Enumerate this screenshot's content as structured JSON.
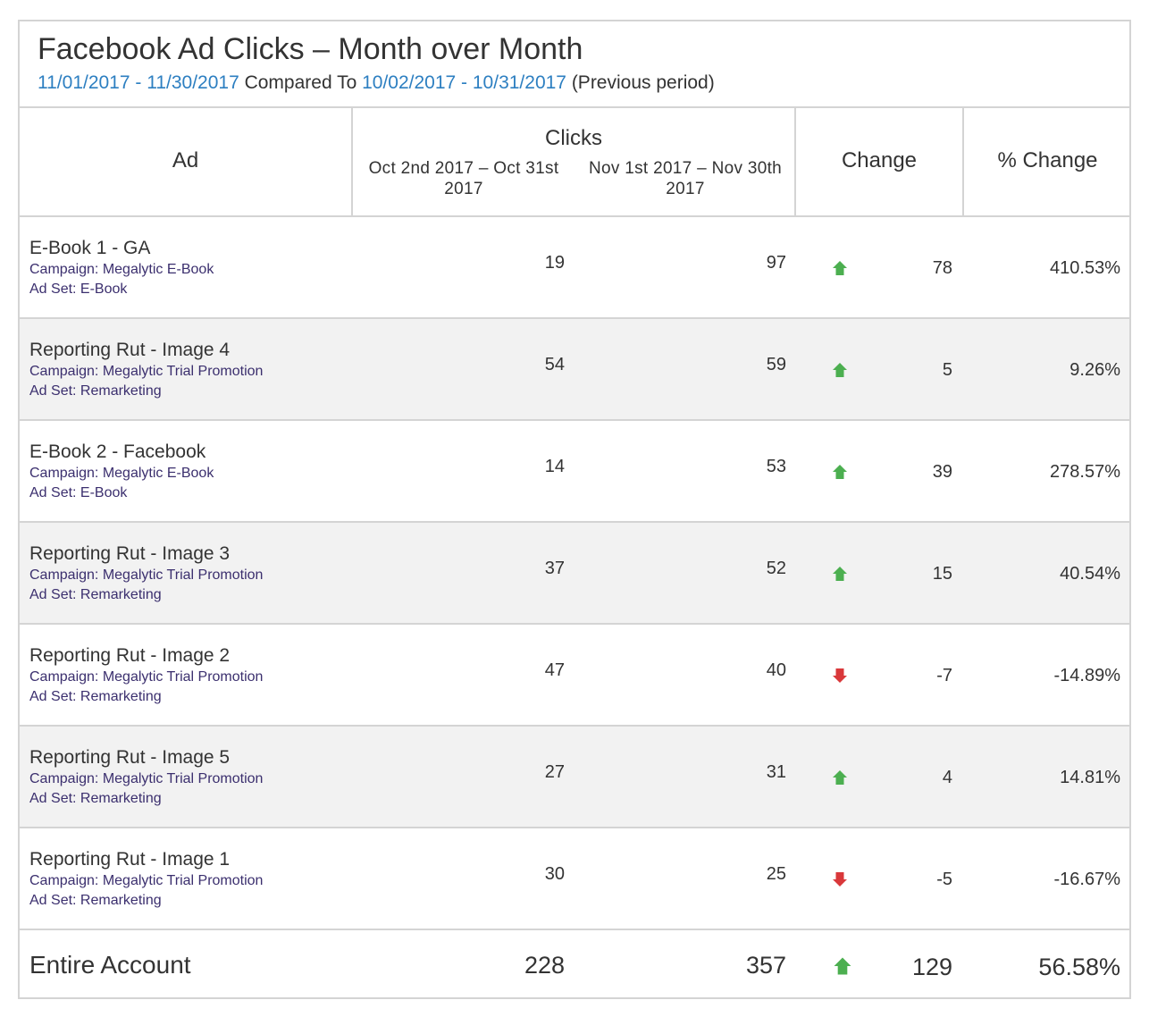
{
  "report": {
    "title": "Facebook Ad Clicks – Month over Month",
    "period_current": "11/01/2017 - 11/30/2017",
    "compared_to": " Compared To ",
    "period_previous": "10/02/2017 - 10/31/2017",
    "period_note": " (Previous period)"
  },
  "columns": {
    "ad": "Ad",
    "clicks": "Clicks",
    "clicks_prev": "Oct 2nd 2017 – Oct 31st 2017",
    "clicks_curr": "Nov 1st 2017 – Nov 30th 2017",
    "change": "Change",
    "pct_change": "% Change"
  },
  "colors": {
    "up": "#4caf50",
    "down": "#d9383a",
    "link": "#2d7fc1",
    "meta": "#3b2f6e"
  },
  "rows": [
    {
      "name": "E-Book 1 - GA",
      "campaign": "Campaign: Megalytic E-Book",
      "adset": "Ad Set: E-Book",
      "prev": "19",
      "curr": "97",
      "direction": "up",
      "change": "78",
      "pct": "410.53%"
    },
    {
      "name": "Reporting Rut - Image 4",
      "campaign": "Campaign: Megalytic Trial Promotion",
      "adset": "Ad Set: Remarketing",
      "prev": "54",
      "curr": "59",
      "direction": "up",
      "change": "5",
      "pct": "9.26%"
    },
    {
      "name": "E-Book 2 - Facebook",
      "campaign": "Campaign: Megalytic E-Book",
      "adset": "Ad Set: E-Book",
      "prev": "14",
      "curr": "53",
      "direction": "up",
      "change": "39",
      "pct": "278.57%"
    },
    {
      "name": "Reporting Rut - Image 3",
      "campaign": "Campaign: Megalytic Trial Promotion",
      "adset": "Ad Set: Remarketing",
      "prev": "37",
      "curr": "52",
      "direction": "up",
      "change": "15",
      "pct": "40.54%"
    },
    {
      "name": "Reporting Rut - Image 2",
      "campaign": "Campaign: Megalytic Trial Promotion",
      "adset": "Ad Set: Remarketing",
      "prev": "47",
      "curr": "40",
      "direction": "down",
      "change": "-7",
      "pct": "-14.89%"
    },
    {
      "name": "Reporting Rut - Image 5",
      "campaign": "Campaign: Megalytic Trial Promotion",
      "adset": "Ad Set: Remarketing",
      "prev": "27",
      "curr": "31",
      "direction": "up",
      "change": "4",
      "pct": "14.81%"
    },
    {
      "name": "Reporting Rut - Image 1",
      "campaign": "Campaign: Megalytic Trial Promotion",
      "adset": "Ad Set: Remarketing",
      "prev": "30",
      "curr": "25",
      "direction": "down",
      "change": "-5",
      "pct": "-16.67%"
    }
  ],
  "total": {
    "label": "Entire Account",
    "prev": "228",
    "curr": "357",
    "direction": "up",
    "change": "129",
    "pct": "56.58%"
  }
}
